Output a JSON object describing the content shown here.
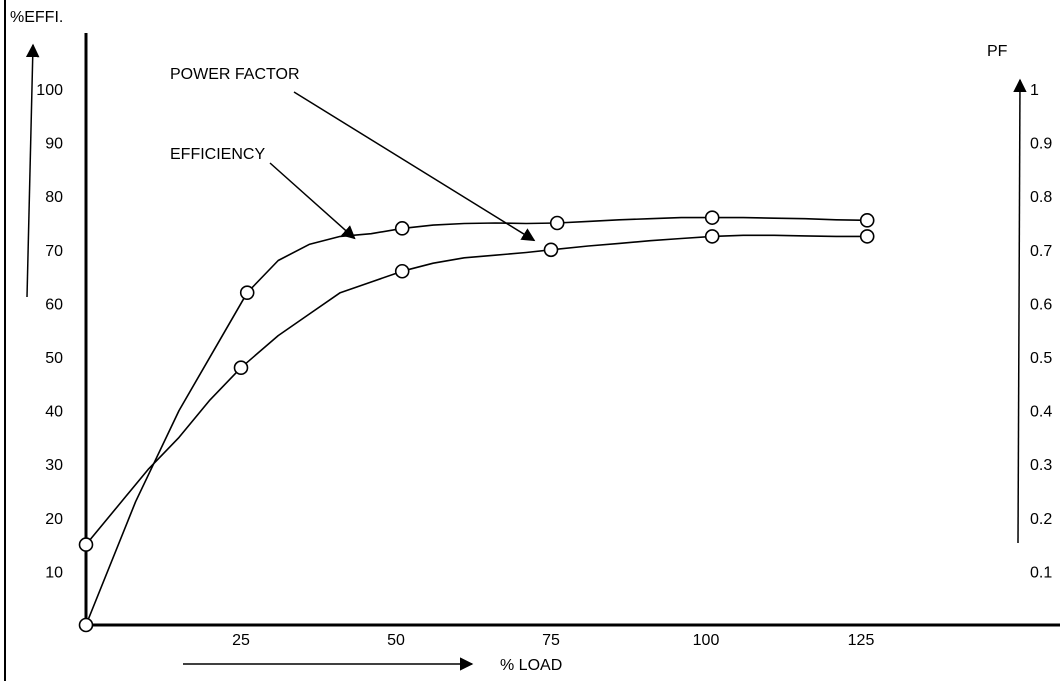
{
  "chart_data": {
    "type": "line",
    "xlabel": "% LOAD",
    "ylabel_left": "%EFFI.",
    "ylabel_right": "PF",
    "x_ticks": [
      "25",
      "50",
      "75",
      "100",
      "125"
    ],
    "x_tick_values": [
      25,
      50,
      75,
      100,
      125
    ],
    "y_left_ticks": [
      "10",
      "20",
      "30",
      "40",
      "50",
      "60",
      "70",
      "80",
      "90",
      "100"
    ],
    "y_left_tick_values": [
      10,
      20,
      30,
      40,
      50,
      60,
      70,
      80,
      90,
      100
    ],
    "y_right_ticks": [
      "0.1",
      "0.2",
      "0.3",
      "0.4",
      "0.5",
      "0.6",
      "0.7",
      "0.8",
      "0.9",
      "1"
    ],
    "y_right_tick_values": [
      0.1,
      0.2,
      0.3,
      0.4,
      0.5,
      0.6,
      0.7,
      0.8,
      0.9,
      1.0
    ],
    "xlim": [
      0,
      150
    ],
    "ylim_left": [
      0,
      110
    ],
    "ylim_right": [
      0,
      1.1
    ],
    "grid": false,
    "series": [
      {
        "name": "EFFICIENCY",
        "axis": "left",
        "x": [
          0,
          26,
          51,
          76,
          101,
          126
        ],
        "y": [
          0,
          62,
          74,
          75,
          76,
          75.5
        ],
        "curve_x": [
          0,
          8,
          15,
          21,
          26,
          31,
          36,
          41,
          46,
          51,
          56,
          61,
          66,
          71,
          76,
          81,
          86,
          91,
          96,
          101,
          106,
          111,
          116,
          121,
          126
        ],
        "curve_y": [
          0,
          23,
          40,
          52,
          62,
          68,
          71,
          72.5,
          73,
          74,
          74.6,
          74.9,
          75,
          74.9,
          75,
          75.3,
          75.6,
          75.8,
          76,
          76,
          76,
          75.9,
          75.8,
          75.6,
          75.5
        ],
        "markers": true
      },
      {
        "name": "POWER FACTOR",
        "axis": "right",
        "x": [
          0,
          25,
          51,
          75,
          101,
          126
        ],
        "y": [
          0.15,
          0.48,
          0.66,
          0.7,
          0.725,
          0.725
        ],
        "curve_x": [
          0,
          5,
          10,
          15,
          20,
          25,
          31,
          36,
          41,
          46,
          51,
          56,
          61,
          66,
          71,
          75,
          81,
          86,
          91,
          96,
          101,
          106,
          111,
          116,
          121,
          126
        ],
        "curve_y": [
          0.15,
          0.22,
          0.29,
          0.35,
          0.42,
          0.48,
          0.54,
          0.58,
          0.62,
          0.64,
          0.66,
          0.675,
          0.685,
          0.69,
          0.695,
          0.7,
          0.707,
          0.712,
          0.717,
          0.721,
          0.725,
          0.727,
          0.727,
          0.726,
          0.725,
          0.725
        ],
        "markers": true
      }
    ],
    "annotations": [
      {
        "text": "POWER FACTOR",
        "points_to": "POWER FACTOR",
        "arrow_x": 71,
        "arrow_y": 0.71
      },
      {
        "text": "EFFICIENCY",
        "points_to": "EFFICIENCY",
        "arrow_x": 43,
        "arrow_y": 72.5
      }
    ]
  }
}
